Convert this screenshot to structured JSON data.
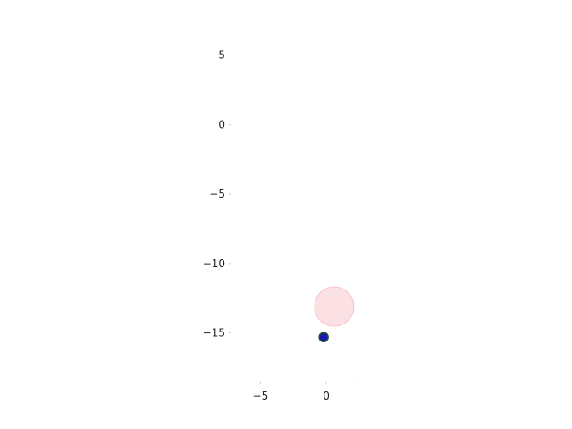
{
  "chart_data": {
    "type": "scatter",
    "title": "",
    "xlabel": "",
    "ylabel": "",
    "xlim": [
      -7.2,
      2.1
    ],
    "ylim": [
      -18.5,
      6.2
    ],
    "grid": false,
    "x_ticks": [
      -5,
      0
    ],
    "x_tick_labels": [
      "−5",
      "0"
    ],
    "y_ticks": [
      5,
      0,
      -5,
      -10,
      -15
    ],
    "y_tick_labels": [
      "5",
      "0",
      "−5",
      "−10",
      "−15"
    ],
    "series": [
      {
        "marker": "large-circle",
        "color": "#fadadd",
        "points": [
          {
            "x": 0.6,
            "y": -13.1
          }
        ]
      },
      {
        "marker": "dot",
        "color": "#1a1aaa",
        "edge_color": "#1a5c2a",
        "points": [
          {
            "x": -0.2,
            "y": -15.3
          }
        ]
      }
    ]
  }
}
